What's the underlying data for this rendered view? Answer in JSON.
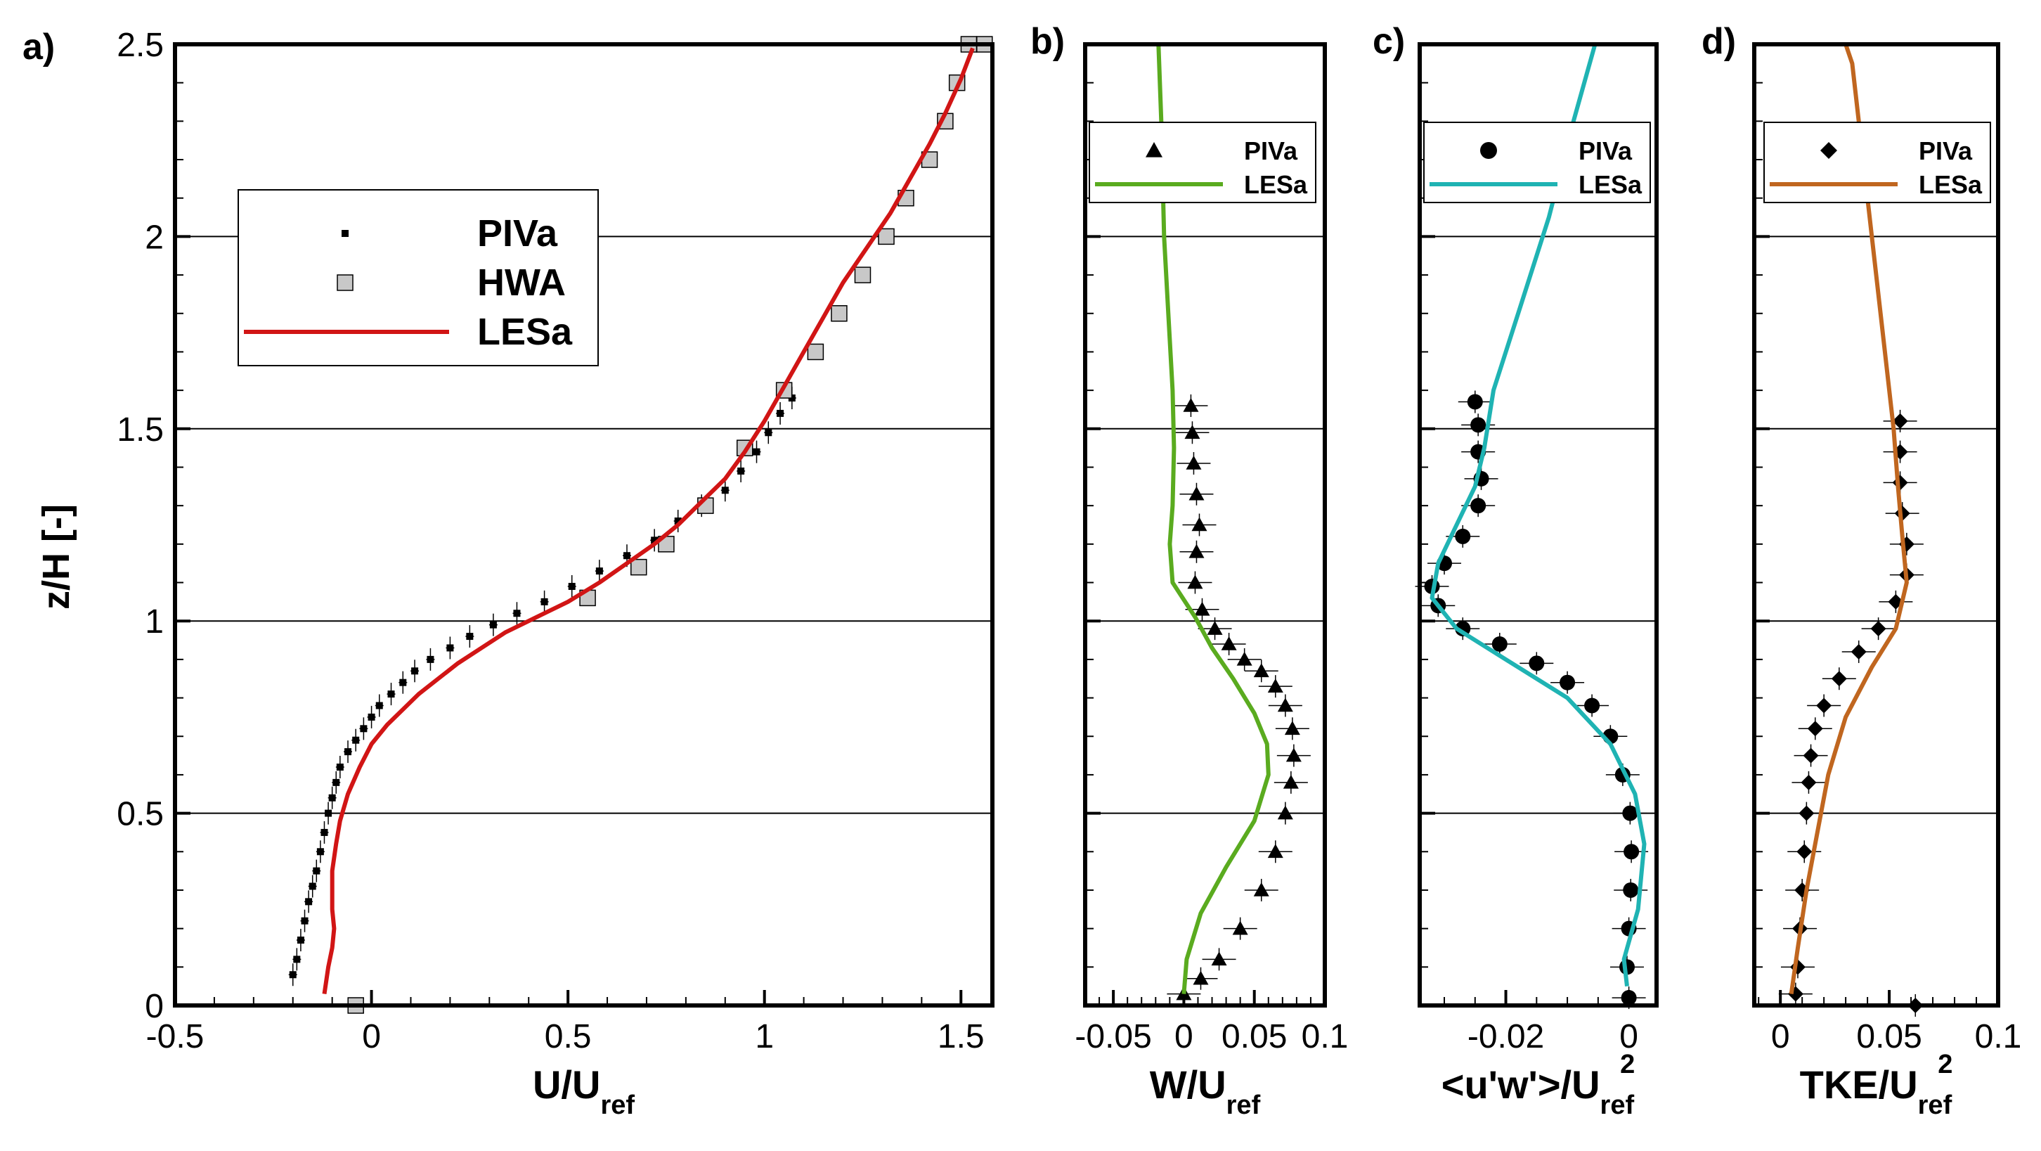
{
  "shared": {
    "ylabel": "z/H [-]",
    "y_ticks": [
      "0",
      "0.5",
      "1",
      "1.5",
      "2",
      "2.5"
    ],
    "y_tick_values": [
      0,
      0.5,
      1,
      1.5,
      2,
      2.5
    ],
    "ylim": [
      0,
      2.5
    ],
    "gridlines_y": [
      0.5,
      1,
      1.5,
      2
    ]
  },
  "chart_data": [
    {
      "panel": "a)",
      "type": "line",
      "xlabel_main": "U/U",
      "xlabel_sub": "ref",
      "xlabel_sup": "",
      "xlim": [
        -0.5,
        1.58
      ],
      "x_ticks": [
        "-0.5",
        "0",
        "0.5",
        "1",
        "1.5"
      ],
      "x_tick_values": [
        -0.5,
        0,
        0.5,
        1,
        1.5
      ],
      "legend_position": "upper-left",
      "legend": [
        "PIVa",
        "HWA",
        "LESa"
      ],
      "series": [
        {
          "name": "PIVa",
          "marker": "small-square",
          "color": "#000000",
          "x": [
            -0.2,
            -0.19,
            -0.18,
            -0.17,
            -0.16,
            -0.15,
            -0.14,
            -0.13,
            -0.12,
            -0.11,
            -0.1,
            -0.09,
            -0.08,
            -0.06,
            -0.04,
            -0.02,
            0,
            0.02,
            0.05,
            0.08,
            0.11,
            0.15,
            0.2,
            0.25,
            0.31,
            0.37,
            0.44,
            0.51,
            0.58,
            0.65,
            0.72,
            0.78,
            0.84,
            0.9,
            0.94,
            0.98,
            1.01,
            1.04,
            1.07
          ],
          "z": [
            0.08,
            0.12,
            0.17,
            0.22,
            0.27,
            0.31,
            0.35,
            0.4,
            0.45,
            0.5,
            0.54,
            0.58,
            0.62,
            0.66,
            0.69,
            0.72,
            0.75,
            0.78,
            0.81,
            0.84,
            0.87,
            0.9,
            0.93,
            0.96,
            0.99,
            1.02,
            1.05,
            1.09,
            1.13,
            1.17,
            1.21,
            1.26,
            1.3,
            1.34,
            1.39,
            1.44,
            1.49,
            1.54,
            1.58
          ]
        },
        {
          "name": "HWA",
          "marker": "gray-square",
          "color": "#c8c8c8",
          "x": [
            -0.04,
            0.55,
            0.68,
            0.75,
            0.85,
            0.95,
            1.05,
            1.13,
            1.19,
            1.25,
            1.31,
            1.36,
            1.42,
            1.46,
            1.49,
            1.52,
            1.56
          ],
          "z": [
            0.0,
            1.06,
            1.14,
            1.2,
            1.3,
            1.45,
            1.6,
            1.7,
            1.8,
            1.9,
            2.0,
            2.1,
            2.2,
            2.3,
            2.4,
            2.5,
            2.5
          ]
        },
        {
          "name": "LESa",
          "marker": "line",
          "color": "#d11515",
          "x": [
            -0.12,
            -0.11,
            -0.1,
            -0.095,
            -0.1,
            -0.1,
            -0.09,
            -0.08,
            -0.06,
            -0.03,
            0.0,
            0.04,
            0.08,
            0.12,
            0.17,
            0.22,
            0.28,
            0.34,
            0.42,
            0.5,
            0.58,
            0.65,
            0.72,
            0.78,
            0.84,
            0.9,
            0.95,
            1.0,
            1.05,
            1.1,
            1.15,
            1.2,
            1.26,
            1.32,
            1.37,
            1.42,
            1.46,
            1.5,
            1.53
          ],
          "z": [
            0.03,
            0.1,
            0.15,
            0.2,
            0.25,
            0.35,
            0.42,
            0.48,
            0.55,
            0.62,
            0.68,
            0.73,
            0.77,
            0.81,
            0.85,
            0.89,
            0.93,
            0.97,
            1.01,
            1.05,
            1.1,
            1.15,
            1.2,
            1.25,
            1.31,
            1.37,
            1.44,
            1.52,
            1.61,
            1.7,
            1.79,
            1.88,
            1.97,
            2.06,
            2.15,
            2.24,
            2.32,
            2.41,
            2.49
          ]
        }
      ]
    },
    {
      "panel": "b)",
      "type": "line",
      "xlabel_main": "W/U",
      "xlabel_sub": "ref",
      "xlabel_sup": "",
      "xlim": [
        -0.07,
        0.1
      ],
      "x_ticks": [
        "-0.05",
        "0",
        "0.05",
        "0.1"
      ],
      "x_tick_values": [
        -0.05,
        0,
        0.05,
        0.1
      ],
      "legend_position": "top",
      "legend": [
        "PIVa",
        "LESa"
      ],
      "series": [
        {
          "name": "PIVa",
          "marker": "triangle",
          "color": "#000000",
          "x": [
            0.0,
            0.012,
            0.025,
            0.04,
            0.055,
            0.065,
            0.072,
            0.076,
            0.078,
            0.077,
            0.072,
            0.065,
            0.055,
            0.043,
            0.032,
            0.022,
            0.013,
            0.008,
            0.009,
            0.011,
            0.009,
            0.007,
            0.006,
            0.005
          ],
          "z": [
            0.03,
            0.07,
            0.12,
            0.2,
            0.3,
            0.4,
            0.5,
            0.58,
            0.65,
            0.72,
            0.78,
            0.83,
            0.87,
            0.9,
            0.94,
            0.98,
            1.03,
            1.1,
            1.18,
            1.25,
            1.33,
            1.41,
            1.49,
            1.56
          ]
        },
        {
          "name": "LESa",
          "marker": "line",
          "color": "#5aab1f",
          "x": [
            0.0,
            0.002,
            0.012,
            0.03,
            0.05,
            0.06,
            0.059,
            0.05,
            0.035,
            0.02,
            0.008,
            -0.008,
            -0.01,
            -0.008,
            -0.007,
            -0.008,
            -0.011,
            -0.014,
            -0.016,
            -0.018
          ],
          "z": [
            0.03,
            0.12,
            0.24,
            0.36,
            0.48,
            0.6,
            0.68,
            0.76,
            0.85,
            0.93,
            1.01,
            1.1,
            1.2,
            1.3,
            1.45,
            1.6,
            1.8,
            2.0,
            2.3,
            2.5
          ]
        }
      ]
    },
    {
      "panel": "c)",
      "type": "line",
      "xlabel_main": "<u'w'>/U",
      "xlabel_sub": "ref",
      "xlabel_sup": "2",
      "xlim": [
        -0.034,
        0.0045
      ],
      "x_ticks": [
        "-0.02",
        "0"
      ],
      "x_tick_values": [
        -0.02,
        0
      ],
      "legend_position": "top",
      "legend": [
        "PIVa",
        "LESa"
      ],
      "series": [
        {
          "name": "PIVa",
          "marker": "circle",
          "color": "#000000",
          "x": [
            0.0,
            -0.0003,
            0.0,
            0.0003,
            0.0004,
            0.0002,
            -0.001,
            -0.003,
            -0.006,
            -0.01,
            -0.015,
            -0.021,
            -0.027,
            -0.031,
            -0.032,
            -0.03,
            -0.027,
            -0.0245,
            -0.024,
            -0.0245,
            -0.0245,
            -0.025
          ],
          "z": [
            0.02,
            0.1,
            0.2,
            0.3,
            0.4,
            0.5,
            0.6,
            0.7,
            0.78,
            0.84,
            0.89,
            0.94,
            0.98,
            1.04,
            1.09,
            1.15,
            1.22,
            1.3,
            1.37,
            1.44,
            1.51,
            1.57
          ]
        },
        {
          "name": "LESa",
          "marker": "line",
          "color": "#1fb3b3",
          "x": [
            -0.0003,
            -0.0008,
            0.0015,
            0.0025,
            0.001,
            -0.003,
            -0.01,
            -0.02,
            -0.028,
            -0.032,
            -0.031,
            -0.028,
            -0.025,
            -0.0235,
            -0.022,
            -0.018,
            -0.013,
            -0.009,
            -0.0055
          ],
          "z": [
            0.05,
            0.12,
            0.25,
            0.42,
            0.55,
            0.68,
            0.8,
            0.9,
            0.98,
            1.06,
            1.15,
            1.25,
            1.35,
            1.45,
            1.6,
            1.8,
            2.05,
            2.3,
            2.5
          ]
        }
      ]
    },
    {
      "panel": "d)",
      "type": "line",
      "xlabel_main": "TKE/U",
      "xlabel_sub": "ref",
      "xlabel_sup": "2",
      "xlim": [
        -0.012,
        0.1
      ],
      "x_ticks": [
        "0",
        "0.05",
        "0.1"
      ],
      "x_tick_values": [
        0,
        0.05,
        0.1
      ],
      "legend_position": "top",
      "legend": [
        "PIVa",
        "LESa"
      ],
      "series": [
        {
          "name": "PIVa",
          "marker": "diamond",
          "color": "#000000",
          "x": [
            0.007,
            0.008,
            0.009,
            0.01,
            0.011,
            0.012,
            0.013,
            0.014,
            0.016,
            0.02,
            0.027,
            0.036,
            0.045,
            0.053,
            0.058,
            0.058,
            0.056,
            0.055,
            0.055,
            0.055,
            0.062
          ],
          "z": [
            0.03,
            0.1,
            0.2,
            0.3,
            0.4,
            0.5,
            0.58,
            0.65,
            0.72,
            0.78,
            0.85,
            0.92,
            0.98,
            1.05,
            1.12,
            1.2,
            1.28,
            1.36,
            1.44,
            1.52,
            0.0
          ]
        },
        {
          "name": "LESa",
          "marker": "line",
          "color": "#c0661f",
          "x": [
            0.005,
            0.008,
            0.012,
            0.017,
            0.022,
            0.03,
            0.042,
            0.053,
            0.058,
            0.056,
            0.054,
            0.052,
            0.048,
            0.044,
            0.04,
            0.036,
            0.033,
            0.03
          ],
          "z": [
            0.03,
            0.15,
            0.3,
            0.45,
            0.6,
            0.75,
            0.88,
            0.98,
            1.1,
            1.22,
            1.35,
            1.5,
            1.7,
            1.9,
            2.1,
            2.3,
            2.45,
            2.5
          ]
        }
      ]
    }
  ]
}
